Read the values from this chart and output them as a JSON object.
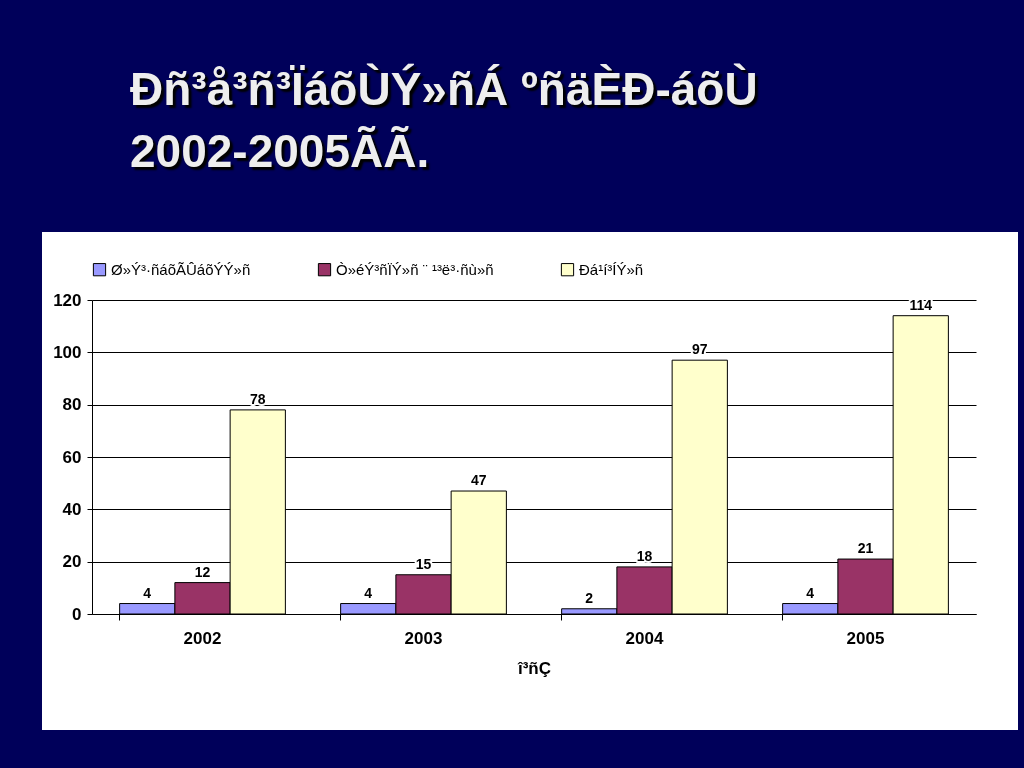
{
  "chart_data": {
    "type": "bar",
    "title": "Ðñ³å³ñ³ÏáõÙÝ»ñÁ ºñäÈÐ-áõÙ 2002-2005ÃÃ.",
    "xlabel": "î³ñÇ",
    "categories": [
      "2002",
      "2003",
      "2004",
      "2005"
    ],
    "series": [
      {
        "name": "Ø»Ý³·ñáõÃÛáõÝÝ»ñ",
        "color": "#9999ff",
        "values": [
          4,
          4,
          2,
          4
        ]
      },
      {
        "name": "Ò»éÝ³ñÏÝ»ñ ¨ ¹³ë³·ñù»ñ",
        "color": "#993366",
        "values": [
          12,
          15,
          18,
          21
        ]
      },
      {
        "name": "Ðá¹í³ÍÝ»ñ",
        "color": "#ffffcc",
        "values": [
          78,
          47,
          97,
          114
        ]
      }
    ],
    "ylim": [
      0,
      120
    ],
    "yticks": [
      0,
      20,
      40,
      60,
      80,
      100,
      120
    ],
    "grid": "y",
    "legend": "top",
    "data_labels": true
  }
}
